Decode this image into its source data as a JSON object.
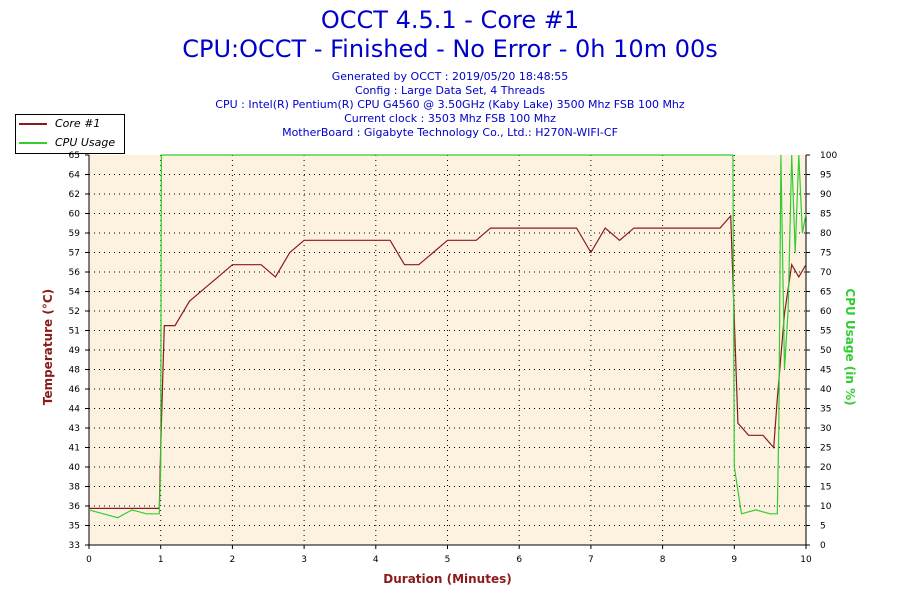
{
  "header": {
    "title": "OCCT 4.5.1 - Core #1",
    "subtitle": "CPU:OCCT - Finished - No Error - 0h 10m 00s",
    "info": [
      "Generated by OCCT : 2019/05/20 18:48:55",
      "Config : Large Data Set, 4 Threads",
      "CPU : Intel(R) Pentium(R) CPU G4560 @ 3.50GHz (Kaby Lake) 3500 Mhz FSB 100 Mhz",
      "Current clock : 3503 Mhz FSB 100 Mhz",
      "MotherBoard : Gigabyte Technology Co., Ltd.: H270N-WIFI-CF"
    ]
  },
  "legend": {
    "core_label": "Core #1",
    "usage_label": "CPU Usage"
  },
  "colors": {
    "temperature": "#8b1a1a",
    "usage": "#33cc33",
    "plot_background": "#fdf2e0",
    "title": "#0000cc"
  },
  "chart_data": {
    "type": "line",
    "xlabel": "Duration (Minutes)",
    "ylabel_left": "Temperature (°C)",
    "ylabel_right": "CPU Usage (in %)",
    "xlim": [
      0,
      10
    ],
    "ylim_left": [
      33,
      65
    ],
    "ylim_right": [
      0,
      100
    ],
    "x_ticks": [
      "0",
      "1",
      "2",
      "3",
      "4",
      "5",
      "6",
      "7",
      "8",
      "9",
      "10"
    ],
    "y_ticks_left": [
      "33",
      "35",
      "36",
      "38",
      "40",
      "41",
      "43",
      "44",
      "46",
      "48",
      "49",
      "51",
      "52",
      "54",
      "56",
      "57",
      "59",
      "60",
      "62",
      "64",
      "65"
    ],
    "y_ticks_right": [
      "0",
      "5",
      "10",
      "15",
      "20",
      "25",
      "30",
      "35",
      "40",
      "45",
      "50",
      "55",
      "60",
      "65",
      "70",
      "75",
      "80",
      "85",
      "90",
      "95",
      "100"
    ],
    "grid": true,
    "series": [
      {
        "name": "Core #1",
        "axis": "left",
        "x": [
          0,
          0.2,
          0.4,
          0.6,
          0.8,
          0.98,
          1.0,
          1.05,
          1.2,
          1.4,
          1.6,
          1.8,
          2.0,
          2.2,
          2.4,
          2.6,
          2.8,
          3.0,
          3.2,
          3.4,
          3.6,
          3.8,
          4.0,
          4.2,
          4.4,
          4.6,
          4.8,
          5.0,
          5.2,
          5.4,
          5.6,
          5.8,
          6.0,
          6.2,
          6.4,
          6.6,
          6.8,
          7.0,
          7.2,
          7.4,
          7.6,
          7.8,
          8.0,
          8.2,
          8.4,
          8.6,
          8.8,
          8.95,
          9.05,
          9.2,
          9.4,
          9.55,
          9.6,
          9.7,
          9.8,
          9.9,
          10.0
        ],
        "y": [
          36,
          36,
          36,
          36,
          36,
          36,
          41,
          51,
          51,
          53,
          54,
          55,
          56,
          56,
          56,
          55,
          57,
          58,
          58,
          58,
          58,
          58,
          58,
          58,
          56,
          56,
          57,
          58,
          58,
          58,
          59,
          59,
          59,
          59,
          59,
          59,
          59,
          57,
          59,
          58,
          59,
          59,
          59,
          59,
          59,
          59,
          59,
          60,
          43,
          42,
          42,
          41,
          45,
          52,
          56,
          55,
          56
        ]
      },
      {
        "name": "CPU Usage",
        "axis": "right",
        "x": [
          0,
          0.2,
          0.4,
          0.6,
          0.8,
          0.98,
          1.0,
          1.01,
          8.98,
          9.0,
          9.05,
          9.1,
          9.3,
          9.5,
          9.6,
          9.62,
          9.65,
          9.7,
          9.75,
          9.8,
          9.85,
          9.9,
          9.95,
          10.0
        ],
        "y": [
          9,
          8,
          7,
          9,
          8,
          8,
          20,
          100,
          100,
          20,
          14,
          8,
          9,
          8,
          8,
          30,
          100,
          45,
          60,
          100,
          75,
          100,
          80,
          85
        ]
      }
    ]
  }
}
